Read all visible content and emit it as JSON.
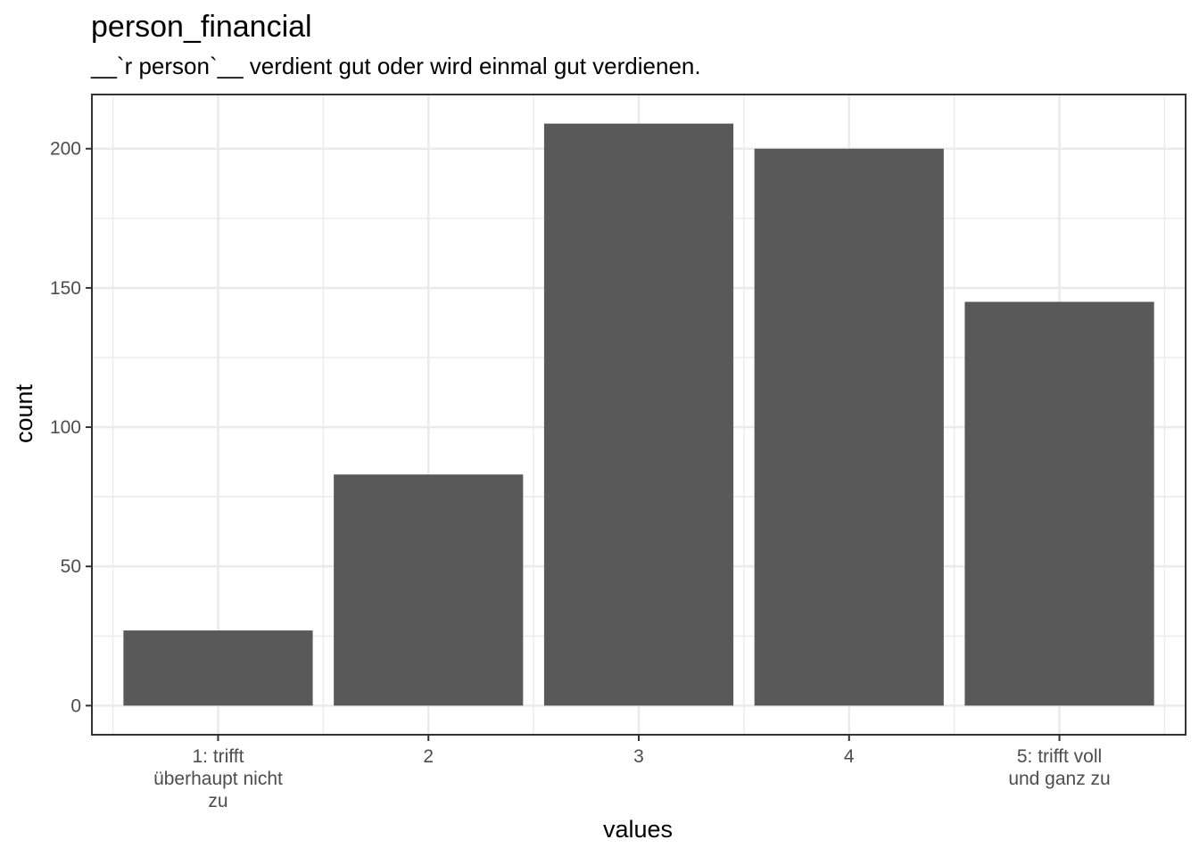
{
  "chart_data": {
    "type": "bar",
    "title": "person_financial",
    "subtitle": "__`r person`__ verdient gut oder wird einmal gut verdienen.",
    "xlabel": "values",
    "ylabel": "count",
    "categories": [
      [
        "1: trifft",
        "überhaupt nicht",
        "zu"
      ],
      [
        "2"
      ],
      [
        "3"
      ],
      [
        "4"
      ],
      [
        "5: trifft voll",
        "und ganz zu"
      ]
    ],
    "values": [
      27,
      83,
      209,
      200,
      145
    ],
    "ylim": [
      -10.45,
      219.45
    ],
    "yticks": [
      0,
      50,
      100,
      150,
      200
    ],
    "grid": true,
    "bar_color": "#595959",
    "grid_color": "#ebebeb",
    "legend": "none"
  }
}
